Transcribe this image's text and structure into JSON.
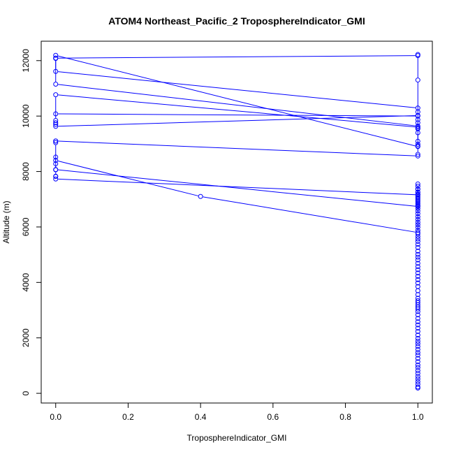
{
  "chart_data": {
    "type": "line",
    "title": "ATOM4 Northeast_Pacific_2 TroposphereIndicator_GMI",
    "xlabel": "TroposphereIndicator_GMI",
    "ylabel": "Altitude (m)",
    "xlim": [
      -0.04,
      1.04
    ],
    "ylim": [
      -350,
      12700
    ],
    "x_ticks": [
      0,
      0.2,
      0.4,
      0.6,
      0.8,
      1
    ],
    "x_tick_labels": [
      "0.0",
      "0.2",
      "0.4",
      "0.6",
      "0.8",
      "1.0"
    ],
    "y_ticks": [
      0,
      2000,
      4000,
      6000,
      8000,
      10000,
      12000
    ],
    "y_tick_labels": [
      "0",
      "2000",
      "4000",
      "6000",
      "8000",
      "10000",
      "12000"
    ],
    "grid": false,
    "legend": "none",
    "series_color": "#0000ff",
    "series": [
      {
        "x": [
          1,
          1,
          1,
          1,
          1,
          1,
          1,
          1,
          1,
          1,
          1,
          1,
          1,
          1,
          1,
          1,
          1,
          1,
          1,
          1,
          1,
          1,
          1,
          1,
          1,
          1,
          1,
          1,
          1,
          1,
          1,
          1,
          1,
          1,
          1,
          1,
          1,
          1,
          1,
          1,
          1,
          1,
          1,
          1,
          1,
          1,
          1,
          1,
          1,
          1,
          1,
          1,
          1,
          1,
          1,
          1,
          1,
          1,
          1,
          1,
          1,
          1,
          1,
          1,
          1,
          1,
          1,
          1,
          1,
          1,
          1,
          0.4,
          0,
          0,
          0,
          1,
          1,
          1,
          1,
          1,
          1,
          1,
          1,
          1,
          1,
          1,
          0,
          0,
          0,
          0,
          0,
          0,
          0,
          0,
          1,
          1,
          1,
          1,
          1,
          1,
          1,
          0,
          0,
          0,
          0,
          0,
          1,
          1,
          1,
          1,
          0,
          0,
          0,
          0,
          1,
          1,
          1,
          1,
          1,
          0,
          0,
          1,
          1,
          1,
          1,
          0
        ],
        "y": [
          190,
          230,
          330,
          420,
          520,
          610,
          720,
          820,
          930,
          1020,
          1140,
          1260,
          1380,
          1470,
          1580,
          1690,
          1790,
          1880,
          1980,
          2100,
          2230,
          2350,
          2470,
          2580,
          2700,
          2830,
          2950,
          3040,
          3110,
          3190,
          3270,
          3340,
          3430,
          3560,
          3700,
          3850,
          3980,
          4100,
          4220,
          4340,
          4460,
          4570,
          4690,
          4810,
          4910,
          5010,
          5130,
          5260,
          5370,
          5480,
          5570,
          5660,
          5750,
          5880,
          5990,
          6080,
          6170,
          6270,
          6370,
          6480,
          6580,
          6670,
          6750,
          6830,
          6920,
          7010,
          7100,
          7180,
          7260,
          7370,
          5800,
          7100,
          8400,
          8520,
          8070,
          6740,
          6780,
          6870,
          6960,
          7060,
          7160,
          7250,
          7360,
          7470,
          7550,
          7160,
          7730,
          7820,
          7830,
          8060,
          8280,
          9040,
          9100,
          9100,
          8560,
          8620,
          8920,
          9400,
          9560,
          9760,
          10020,
          9630,
          9700,
          9760,
          9840,
          10770,
          9600,
          9870,
          10150,
          10290,
          11610,
          12080,
          12090,
          12190,
          8900,
          8980,
          9090,
          9540,
          9640,
          11150,
          12090,
          12180,
          12220,
          11300,
          10000,
          10080
        ]
      }
    ]
  }
}
